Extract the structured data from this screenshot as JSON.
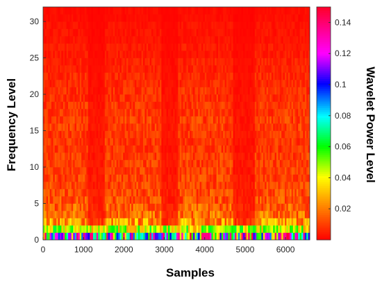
{
  "chart_data": {
    "type": "heatmap",
    "title": "",
    "xlabel": "Samples",
    "ylabel": "Frequency Level",
    "colorbar_label": "Wavelet Power Level",
    "xlim": [
      0,
      6600
    ],
    "ylim": [
      0,
      32
    ],
    "x_ticks": [
      0,
      1000,
      2000,
      3000,
      4000,
      5000,
      6000
    ],
    "x_tick_labels": [
      "0",
      "1000",
      "2000",
      "3000",
      "4000",
      "5000",
      "6000"
    ],
    "y_ticks": [
      0,
      5,
      10,
      15,
      20,
      25,
      30
    ],
    "y_tick_labels": [
      "0",
      "5",
      "10",
      "15",
      "20",
      "25",
      "30"
    ],
    "clim": [
      0,
      0.15
    ],
    "colorbar_ticks": [
      0.02,
      0.04,
      0.06,
      0.08,
      0.1,
      0.12,
      0.14
    ],
    "colorbar_tick_labels": [
      "0.02",
      "0.04",
      "0.06",
      "0.08",
      "0.1",
      "0.12",
      "0.14"
    ],
    "colormap": "red-orange-yellow-green-cyan-blue-magenta-red",
    "frequency_levels": 32,
    "level_mean_power": [
      0.09,
      0.04,
      0.022,
      0.016,
      0.014,
      0.012,
      0.011,
      0.01,
      0.01,
      0.009,
      0.009,
      0.009,
      0.008,
      0.008,
      0.008,
      0.009,
      0.009,
      0.008,
      0.008,
      0.007,
      0.007,
      0.006,
      0.006,
      0.005,
      0.005,
      0.004,
      0.004,
      0.003,
      0.003,
      0.003,
      0.002,
      0.002
    ],
    "low_power_bands_samples": [
      [
        1100,
        1500
      ],
      [
        2900,
        3300
      ],
      [
        4700,
        5200
      ]
    ],
    "grid": false
  }
}
